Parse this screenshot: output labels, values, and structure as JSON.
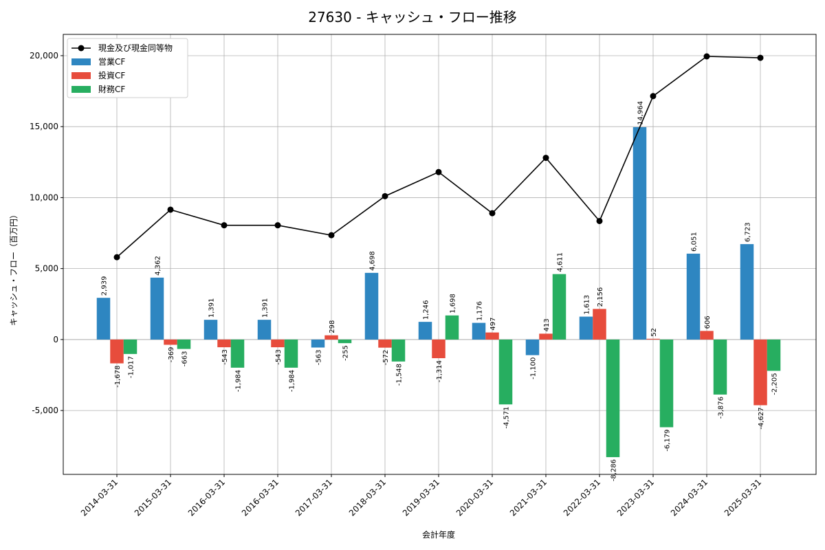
{
  "chart_data": {
    "type": "bar",
    "title": "27630 - キャッシュ・フロー推移",
    "xlabel": "会計年度",
    "ylabel": "キャッシュ・フロー（百万円）",
    "ylim": [
      -9500,
      21500
    ],
    "yticks": [
      -5000,
      0,
      5000,
      10000,
      15000,
      20000
    ],
    "ytick_labels": [
      "-5,000",
      "0",
      "5,000",
      "10,000",
      "15,000",
      "20,000"
    ],
    "grid": true,
    "legend_position": "top-left",
    "categories": [
      "2014-03-31",
      "2015-03-31",
      "2016-03-31",
      "2016-03-31",
      "2017-03-31",
      "2018-03-31",
      "2019-03-31",
      "2020-03-31",
      "2021-03-31",
      "2022-03-31",
      "2023-03-31",
      "2024-03-31",
      "2025-03-31"
    ],
    "series": [
      {
        "name": "営業CF",
        "kind": "bar",
        "color": "#2e86c1",
        "values": [
          2939,
          4362,
          1391,
          1391,
          -563,
          4698,
          1246,
          1176,
          -1100,
          1613,
          14964,
          6051,
          6723
        ],
        "labels": [
          "2,939",
          "4,362",
          "1,391",
          "1,391",
          "-563",
          "4,698",
          "1,246",
          "1,176",
          "-1,100",
          "1,613",
          "14,964",
          "6,051",
          "6,723"
        ]
      },
      {
        "name": "投資CF",
        "kind": "bar",
        "color": "#e74c3c",
        "values": [
          -1678,
          -369,
          -543,
          -543,
          298,
          -572,
          -1314,
          497,
          413,
          2156,
          52,
          606,
          -4627
        ],
        "labels": [
          "-1,678",
          "-369",
          "-543",
          "-543",
          "298",
          "-572",
          "-1,314",
          "497",
          "413",
          "2,156",
          "52",
          "606",
          "-4,627"
        ]
      },
      {
        "name": "財務CF",
        "kind": "bar",
        "color": "#27ae60",
        "values": [
          -1017,
          -663,
          -1984,
          -1984,
          -255,
          -1548,
          1698,
          -4571,
          4611,
          -8286,
          -6179,
          -3876,
          -2205
        ],
        "labels": [
          "-1,017",
          "-663",
          "-1,984",
          "-1,984",
          "-255",
          "-1,548",
          "1,698",
          "-4,571",
          "4,611",
          "-8,286",
          "-6,179",
          "-3,876",
          "-2,205"
        ]
      },
      {
        "name": "現金及び現金同等物",
        "kind": "line",
        "color": "#000000",
        "values": [
          5800,
          9150,
          8050,
          8050,
          7350,
          10100,
          11800,
          8900,
          12800,
          8350,
          17150,
          19950,
          19850
        ]
      }
    ]
  }
}
